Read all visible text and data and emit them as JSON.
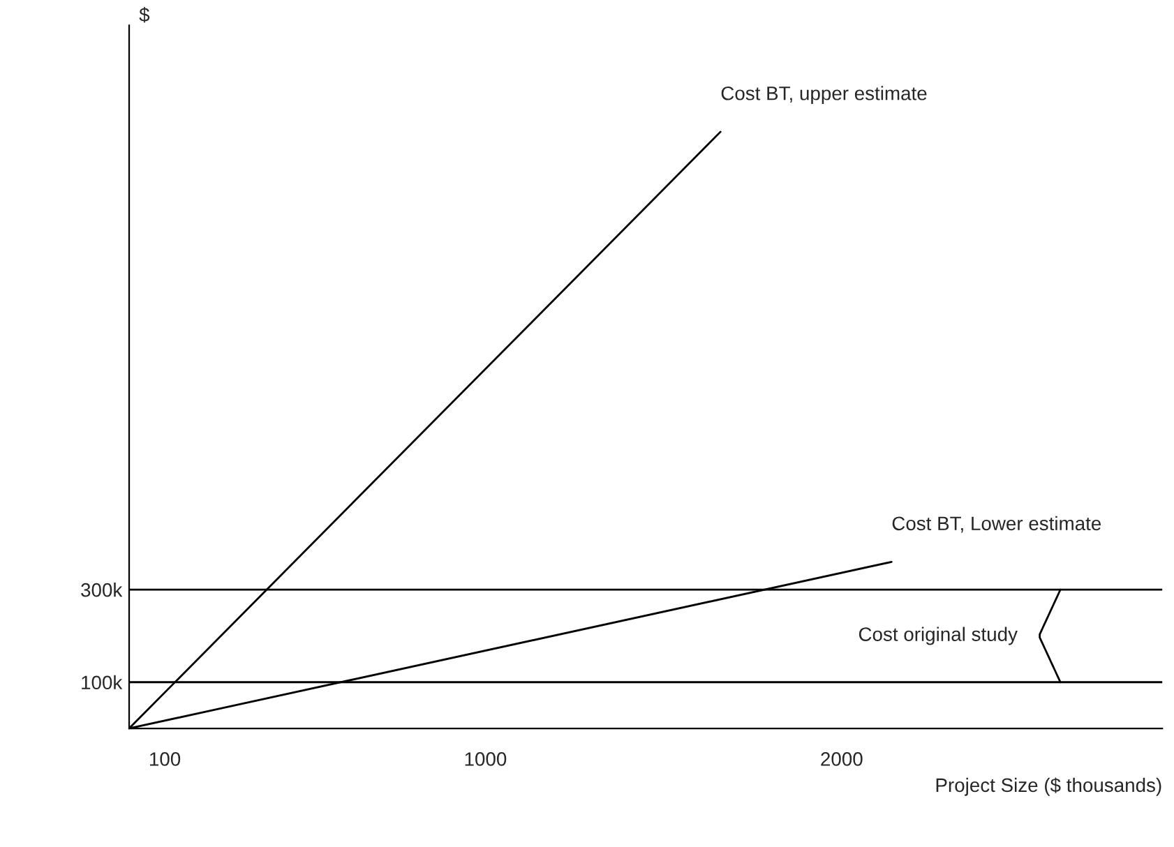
{
  "chart_data": {
    "type": "line",
    "ylabel": "$",
    "xlabel": "Project Size ($ thousands)",
    "series": [
      {
        "name": "Cost BT, upper estimate",
        "color": "#000000",
        "x": [
          0,
          1660
        ],
        "values": [
          0,
          1290
        ]
      },
      {
        "name": "Cost BT, Lower estimate",
        "color": "#000000",
        "x": [
          0,
          2140
        ],
        "values": [
          0,
          360
        ]
      }
    ],
    "xlim": [
      0,
      2900
    ],
    "ylim": [
      0,
      1520
    ],
    "xticks": [
      100,
      1000,
      2000
    ],
    "yticks": [
      {
        "value": 100,
        "label": "100k"
      },
      {
        "value": 300,
        "label": "300k"
      }
    ],
    "ref_lines": [
      {
        "axis": "y",
        "value": 100,
        "color": "#000000"
      },
      {
        "axis": "y",
        "value": 300,
        "color": "#000000"
      }
    ],
    "annotations": [
      "Cost original study"
    ],
    "grid": false,
    "legend": false,
    "marker": "none",
    "line_style": "solid"
  }
}
